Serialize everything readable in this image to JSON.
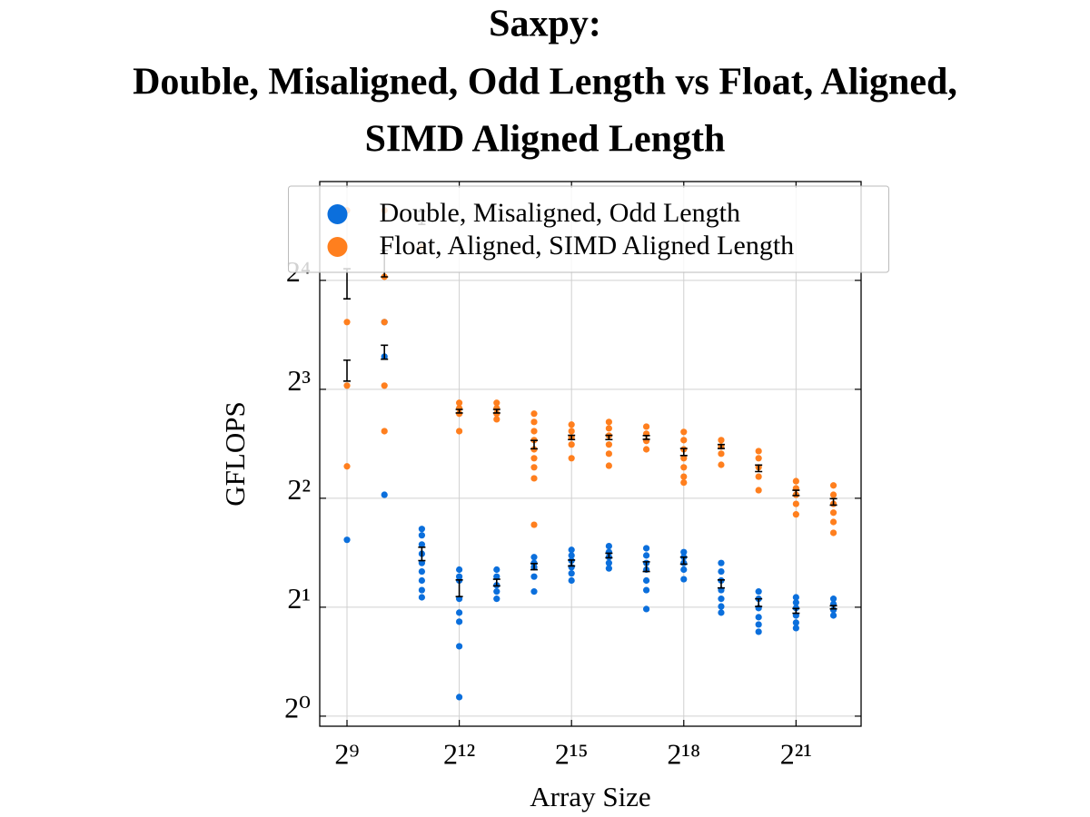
{
  "chart_data": {
    "type": "scatter",
    "title": [
      "Saxpy:",
      "Double, Misaligned, Odd Length vs Float, Aligned,",
      "SIMD Aligned Length"
    ],
    "xlabel": "Array Size",
    "ylabel": "GFLOPS",
    "xscale": "log2",
    "yscale": "log2",
    "grid": true,
    "legend": "upper center",
    "xlim": [
      309,
      7000000
    ],
    "ylim": [
      0.938,
      30.0
    ],
    "xticks": [
      {
        "value": 512,
        "label": "2⁹"
      },
      {
        "value": 4096,
        "label": "2¹²"
      },
      {
        "value": 32768,
        "label": "2¹⁵"
      },
      {
        "value": 262144,
        "label": "2¹⁸"
      },
      {
        "value": 2097152,
        "label": "2²¹"
      }
    ],
    "yticks": [
      {
        "value": 1,
        "label": "2⁰"
      },
      {
        "value": 2,
        "label": "2¹"
      },
      {
        "value": 4,
        "label": "2²"
      },
      {
        "value": 8,
        "label": "2³"
      },
      {
        "value": 16,
        "label": "2⁴"
      }
    ],
    "series": [
      {
        "name": "Double, Misaligned, Odd Length",
        "color": "#0b6fdc",
        "x": [
          512,
          1024,
          1024,
          1024,
          2048,
          2048,
          2048,
          2048,
          2048,
          2048,
          2048,
          2048,
          2048,
          4096,
          4096,
          4096,
          4096,
          4096,
          4096,
          4096,
          4096,
          8192,
          8192,
          8192,
          8192,
          8192,
          16384,
          16384,
          16384,
          16384,
          16384,
          32768,
          32768,
          32768,
          32768,
          32768,
          32768,
          65536,
          65536,
          65536,
          65536,
          65536,
          131072,
          131072,
          131072,
          131072,
          131072,
          131072,
          131072,
          262144,
          262144,
          262144,
          262144,
          262144,
          524288,
          524288,
          524288,
          524288,
          524288,
          524288,
          524288,
          1048576,
          1048576,
          1048576,
          1048576,
          1048576,
          1048576,
          2097152,
          2097152,
          2097152,
          2097152,
          2097152,
          2097152,
          4194304,
          4194304,
          4194304,
          4194304
        ],
        "values": [
          3.07,
          12.27,
          9.85,
          4.09,
          3.29,
          3.16,
          2.98,
          2.81,
          2.65,
          2.51,
          2.37,
          2.23,
          2.13,
          2.54,
          2.43,
          2.37,
          2.11,
          1.932,
          1.824,
          1.56,
          1.129,
          2.54,
          2.43,
          2.3,
          2.21,
          2.11,
          2.75,
          2.65,
          2.58,
          2.43,
          2.21,
          2.88,
          2.78,
          2.69,
          2.58,
          2.48,
          2.37,
          2.95,
          2.84,
          2.75,
          2.65,
          2.56,
          2.91,
          2.78,
          2.65,
          2.54,
          2.37,
          2.23,
          1.977,
          2.84,
          2.75,
          2.65,
          2.54,
          2.39,
          2.65,
          2.51,
          2.37,
          2.23,
          2.11,
          2.01,
          1.932,
          2.21,
          2.11,
          1.989,
          1.877,
          1.792,
          1.711,
          2.13,
          2.06,
          1.989,
          1.898,
          1.813,
          1.751,
          2.11,
          2.04,
          1.966,
          1.898
        ],
        "error_bars": {
          "x": [
            512,
            1024,
            2048,
            4096,
            8192,
            16384,
            32768,
            65536,
            131072,
            262144,
            524288,
            1048576,
            2097152,
            4194304
          ],
          "mean": [
            9.03,
            10.14,
            2.81,
            2.26,
            2.34,
            2.59,
            2.65,
            2.78,
            2.59,
            2.69,
            2.32,
            2.06,
            1.954,
            2.0
          ],
          "error": [
            0.6,
            0.45,
            0.12,
            0.12,
            0.05,
            0.05,
            0.05,
            0.04,
            0.08,
            0.06,
            0.06,
            0.05,
            0.03,
            0.02
          ]
        }
      },
      {
        "name": "Float, Aligned, SIMD Aligned Length",
        "color": "#ff7f1e",
        "x": [
          512,
          512,
          512,
          512,
          1024,
          1024,
          1024,
          1024,
          1024,
          2048,
          4096,
          4096,
          4096,
          4096,
          8192,
          8192,
          8192,
          8192,
          16384,
          16384,
          16384,
          16384,
          16384,
          16384,
          16384,
          16384,
          16384,
          32768,
          32768,
          32768,
          32768,
          32768,
          65536,
          65536,
          65536,
          65536,
          65536,
          65536,
          131072,
          131072,
          131072,
          131072,
          262144,
          262144,
          262144,
          262144,
          262144,
          262144,
          262144,
          524288,
          524288,
          524288,
          524288,
          1048576,
          1048576,
          1048576,
          1048576,
          1048576,
          2097152,
          2097152,
          2097152,
          2097152,
          2097152,
          4194304,
          4194304,
          4194304,
          4194304,
          4194304,
          4194304
        ],
        "values": [
          24.97,
          12.27,
          8.19,
          4.9,
          24.97,
          16.37,
          12.27,
          8.19,
          6.13,
          19.81,
          7.34,
          7.09,
          6.85,
          6.13,
          7.34,
          7.09,
          6.85,
          6.61,
          6.85,
          6.5,
          6.13,
          5.79,
          5.46,
          5.16,
          4.87,
          4.54,
          3.38,
          6.39,
          6.13,
          5.89,
          5.63,
          5.16,
          6.5,
          6.24,
          5.96,
          5.63,
          5.31,
          4.92,
          6.31,
          6.03,
          5.76,
          5.46,
          6.1,
          5.79,
          5.46,
          5.16,
          4.87,
          4.59,
          4.42,
          5.79,
          5.56,
          5.31,
          4.95,
          5.4,
          5.16,
          4.87,
          4.59,
          4.21,
          4.46,
          4.26,
          4.09,
          3.86,
          3.61,
          4.34,
          4.09,
          3.86,
          3.65,
          3.44,
          3.21
        ],
        "error_bars": {
          "x": [
            512,
            1024,
            2048,
            4096,
            8192,
            16384,
            32768,
            65536,
            131072,
            262144,
            524288,
            1048576,
            2097152,
            4194304
          ],
          "mean": [
            15.73,
            17.86,
            23.84,
            6.96,
            6.96,
            5.63,
            5.89,
            5.89,
            5.89,
            5.37,
            5.56,
            4.84,
            4.14,
            3.91
          ],
          "error": [
            1.5,
            1.5,
            1.0,
            0.08,
            0.08,
            0.15,
            0.08,
            0.08,
            0.07,
            0.12,
            0.07,
            0.1,
            0.07,
            0.08
          ]
        }
      }
    ]
  }
}
